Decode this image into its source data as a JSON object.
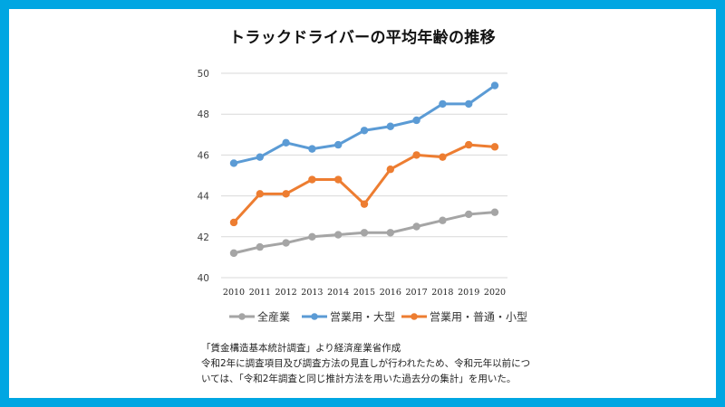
{
  "frame": {
    "border_color": "#00A6E2"
  },
  "chart_data": {
    "type": "line",
    "title": "トラックドライバーの平均年齢の推移",
    "xlabel": "",
    "ylabel": "",
    "x": [
      "2010",
      "2011",
      "2012",
      "2013",
      "2014",
      "2015",
      "2016",
      "2017",
      "2018",
      "2019",
      "2020"
    ],
    "ylim": [
      40,
      50
    ],
    "yticks": [
      "40",
      "42",
      "44",
      "46",
      "48",
      "50"
    ],
    "grid": true,
    "legend_position": "bottom",
    "series": [
      {
        "name": "全産業",
        "color": "#A5A5A5",
        "values": [
          41.2,
          41.5,
          41.7,
          42.0,
          42.1,
          42.2,
          42.2,
          42.5,
          42.8,
          43.1,
          43.2
        ]
      },
      {
        "name": "営業用・大型",
        "color": "#5B9BD5",
        "values": [
          45.6,
          45.9,
          46.6,
          46.3,
          46.5,
          47.2,
          47.4,
          47.7,
          48.5,
          48.5,
          49.4
        ]
      },
      {
        "name": "営業用・普通・小型",
        "color": "#ED7D31",
        "values": [
          42.7,
          44.1,
          44.1,
          44.8,
          44.8,
          43.6,
          45.3,
          46.0,
          45.9,
          46.5,
          46.4
        ]
      }
    ]
  },
  "notes": [
    "「賃金構造基本統計調査」より経済産業省作成",
    "令和2年に調査項目及び調査方法の見直しが行われたため、令和元年以前につ",
    "いては、「令和2年調査と同じ推計方法を用いた過去分の集計」を用いた。"
  ]
}
